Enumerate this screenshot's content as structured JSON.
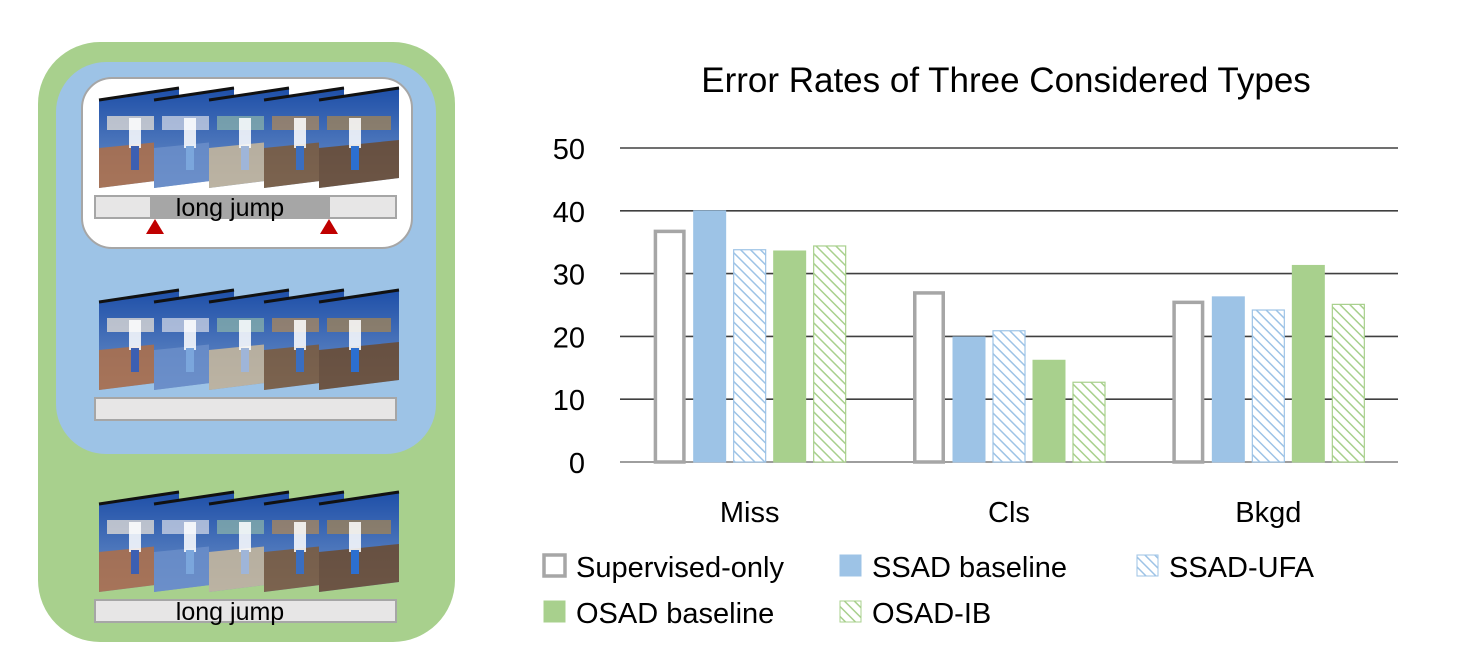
{
  "panel": {
    "colors": {
      "outer": "#a8d08d",
      "middle": "#9dc3e6",
      "inner": "#ffffff",
      "bar": "#e7e6e6",
      "bar_border": "#a6a6a6",
      "segment": "#a6a6a6",
      "marker": "#c00000"
    },
    "strips": [
      {
        "label": "long jump",
        "has_segment": true,
        "has_markers": true
      },
      {
        "label": "",
        "has_segment": false,
        "has_markers": false
      },
      {
        "label": "long jump",
        "has_segment": false,
        "has_markers": false
      }
    ]
  },
  "chart_data": {
    "type": "bar",
    "title": "Error Rates of Three Considered Types",
    "xlabel": "",
    "ylabel": "",
    "categories": [
      "Miss",
      "Cls",
      "Bkgd"
    ],
    "ylim": [
      0,
      50
    ],
    "yticks": [
      "0",
      "10",
      "20",
      "30",
      "40",
      "50"
    ],
    "grid": true,
    "legend_position": "bottom",
    "series": [
      {
        "name": "Supervised-only",
        "values": [
          37,
          27.2,
          25.7
        ],
        "color": "#ffffff",
        "stroke": "#a6a6a6",
        "pattern": "none"
      },
      {
        "name": "SSAD baseline",
        "values": [
          40,
          19.9,
          26.3
        ],
        "color": "#9dc3e6",
        "stroke": "#9dc3e6",
        "pattern": "solid"
      },
      {
        "name": "SSAD-UFA",
        "values": [
          33.8,
          20.9,
          24.2
        ],
        "color": "#9dc3e6",
        "stroke": "#9dc3e6",
        "pattern": "hatch"
      },
      {
        "name": "OSAD baseline",
        "values": [
          33.6,
          16.2,
          31.3
        ],
        "color": "#a8d08d",
        "stroke": "#a8d08d",
        "pattern": "solid"
      },
      {
        "name": "OSAD-IB",
        "values": [
          34.4,
          12.7,
          25.1
        ],
        "color": "#a8d08d",
        "stroke": "#a8d08d",
        "pattern": "hatch"
      }
    ]
  }
}
